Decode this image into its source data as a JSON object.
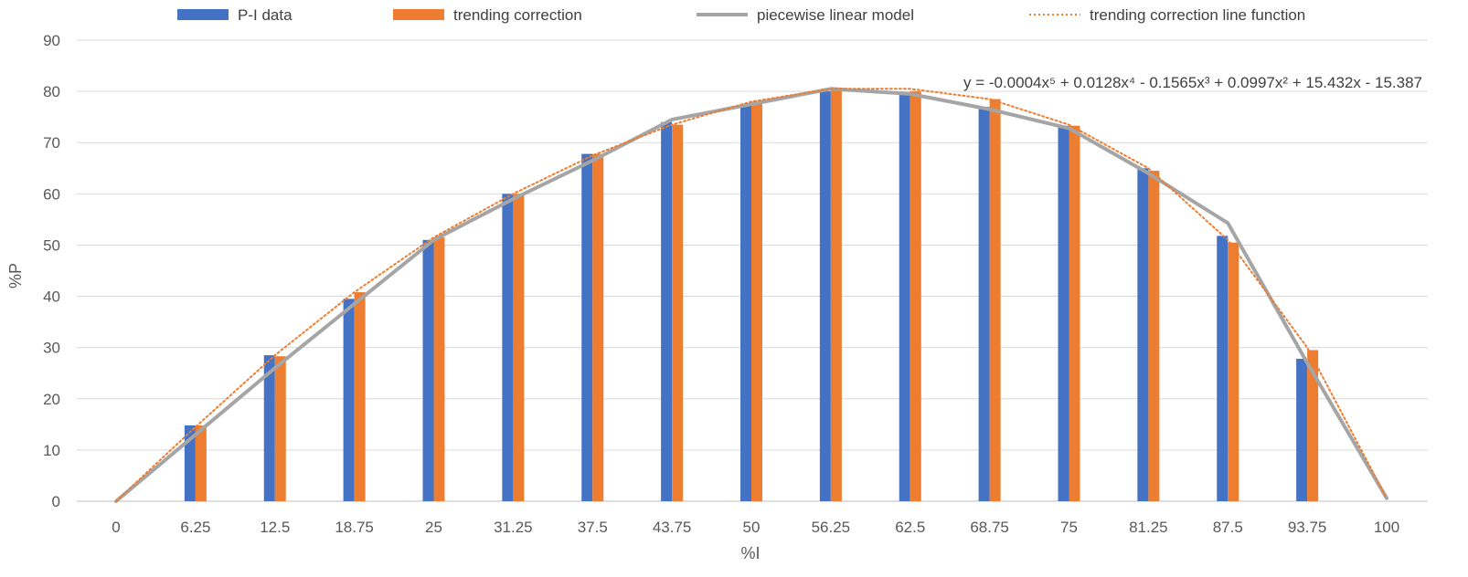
{
  "chart_data": {
    "type": "bar",
    "xlabel": "%I",
    "ylabel": "%P",
    "ylim": [
      0,
      90
    ],
    "yticks": [
      0,
      10,
      20,
      30,
      40,
      50,
      60,
      70,
      80,
      90
    ],
    "grid": true,
    "legend_position": "top",
    "categories": [
      "0",
      "6.25",
      "12.5",
      "18.75",
      "25",
      "31.25",
      "37.5",
      "43.75",
      "50",
      "56.25",
      "62.5",
      "68.75",
      "75",
      "81.25",
      "87.5",
      "93.75",
      "100"
    ],
    "series": [
      {
        "name": "P-I data",
        "kind": "bar",
        "color": "#4472C4",
        "values": [
          null,
          14.8,
          28.5,
          39.5,
          51,
          60,
          67.8,
          74,
          77.5,
          80,
          79.6,
          77,
          73.3,
          65,
          51.8,
          27.8,
          null
        ]
      },
      {
        "name": "trending correction",
        "kind": "bar",
        "color": "#ED7D31",
        "values": [
          null,
          14.8,
          28.3,
          40.8,
          51.5,
          60,
          67.8,
          73.5,
          78,
          80.5,
          80,
          78.5,
          73.3,
          64.5,
          50.5,
          29.5,
          null
        ]
      },
      {
        "name": "piecewise linear model",
        "kind": "line",
        "color": "#A5A5A5",
        "values": [
          0,
          13,
          26,
          38.5,
          51,
          59,
          66.5,
          74.5,
          77.5,
          80.5,
          79.5,
          76.5,
          72.8,
          64,
          54.3,
          27,
          0.6
        ]
      },
      {
        "name": "trending correction line function",
        "kind": "dotted-line",
        "color": "#ED7D31",
        "values": [
          0,
          14.5,
          28.5,
          40.8,
          51.5,
          60,
          67.5,
          73.5,
          78,
          80.5,
          80.5,
          78.5,
          73.5,
          65,
          51,
          30,
          0.6
        ]
      }
    ],
    "annotation": "y = -0.0004x⁵ + 0.0128x⁴ - 0.1565x³ + 0.0997x² + 15.432x - 15.387"
  }
}
